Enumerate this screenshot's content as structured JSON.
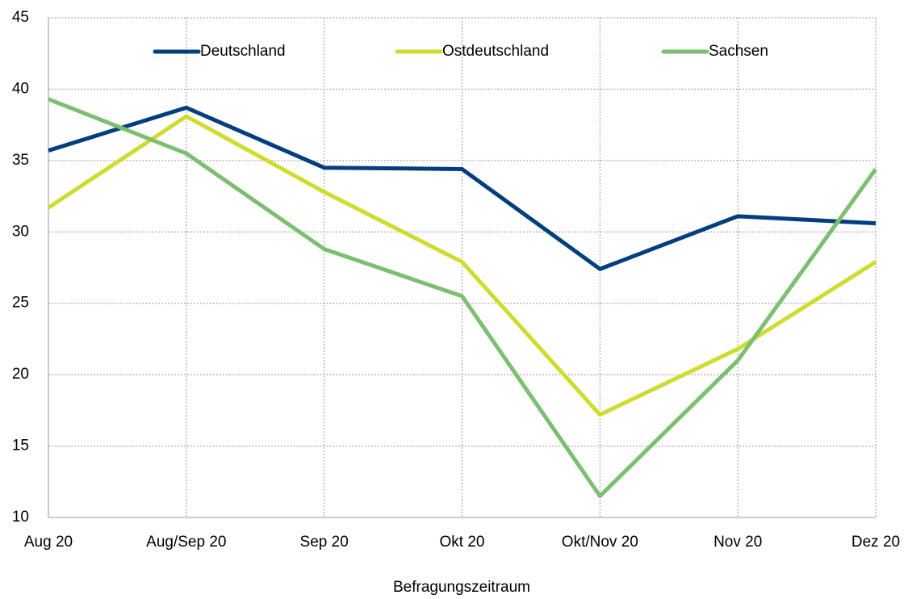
{
  "chart_data": {
    "type": "line",
    "x_label": "Befragungszeitraum",
    "categories": [
      "Aug 20",
      "Aug/Sep 20",
      "Sep 20",
      "Okt 20",
      "Okt/Nov 20",
      "Nov 20",
      "Dez 20"
    ],
    "series": [
      {
        "name": "Deutschland",
        "color": "#003f7d",
        "values": [
          35.7,
          38.7,
          34.5,
          34.4,
          27.4,
          31.1,
          30.6
        ]
      },
      {
        "name": "Ostdeutschland",
        "color": "#cfdc2e",
        "values": [
          31.7,
          38.1,
          32.8,
          27.9,
          17.2,
          21.8,
          27.9
        ]
      },
      {
        "name": "Sachsen",
        "color": "#7dbf72",
        "values": [
          39.3,
          35.5,
          28.8,
          25.5,
          11.5,
          21.0,
          34.4
        ]
      }
    ],
    "ylim": [
      10,
      45
    ],
    "yticks": [
      10,
      15,
      20,
      25,
      30,
      35,
      40,
      45
    ],
    "grid": true,
    "legend": "top"
  }
}
